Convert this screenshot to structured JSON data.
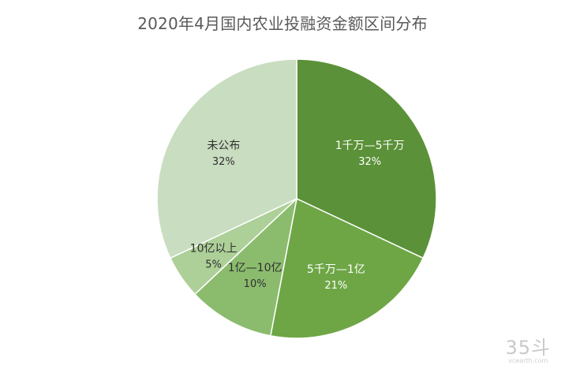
{
  "chart_data": {
    "type": "pie",
    "title": "2020年4月国内农业投融资金额区间分布",
    "slices": [
      {
        "label": "1千万—5千万",
        "value": 32,
        "value_label": "32%",
        "color": "#5b9138",
        "text_color": "#ffffff"
      },
      {
        "label": "5千万—1亿",
        "value": 21,
        "value_label": "21%",
        "color": "#6ea646",
        "text_color": "#ffffff"
      },
      {
        "label": "1亿—10亿",
        "value": 10,
        "value_label": "10%",
        "color": "#8bbc6e",
        "text_color": "#2f2f2f"
      },
      {
        "label": "10亿以上",
        "value": 5,
        "value_label": "5%",
        "color": "#adcf98",
        "text_color": "#2f2f2f"
      },
      {
        "label": "未公布",
        "value": 32,
        "value_label": "32%",
        "color": "#c9ddc0",
        "text_color": "#2f2f2f"
      }
    ],
    "legend": "none"
  },
  "watermark": {
    "logo": "35斗",
    "sub": "vcearth.com"
  }
}
